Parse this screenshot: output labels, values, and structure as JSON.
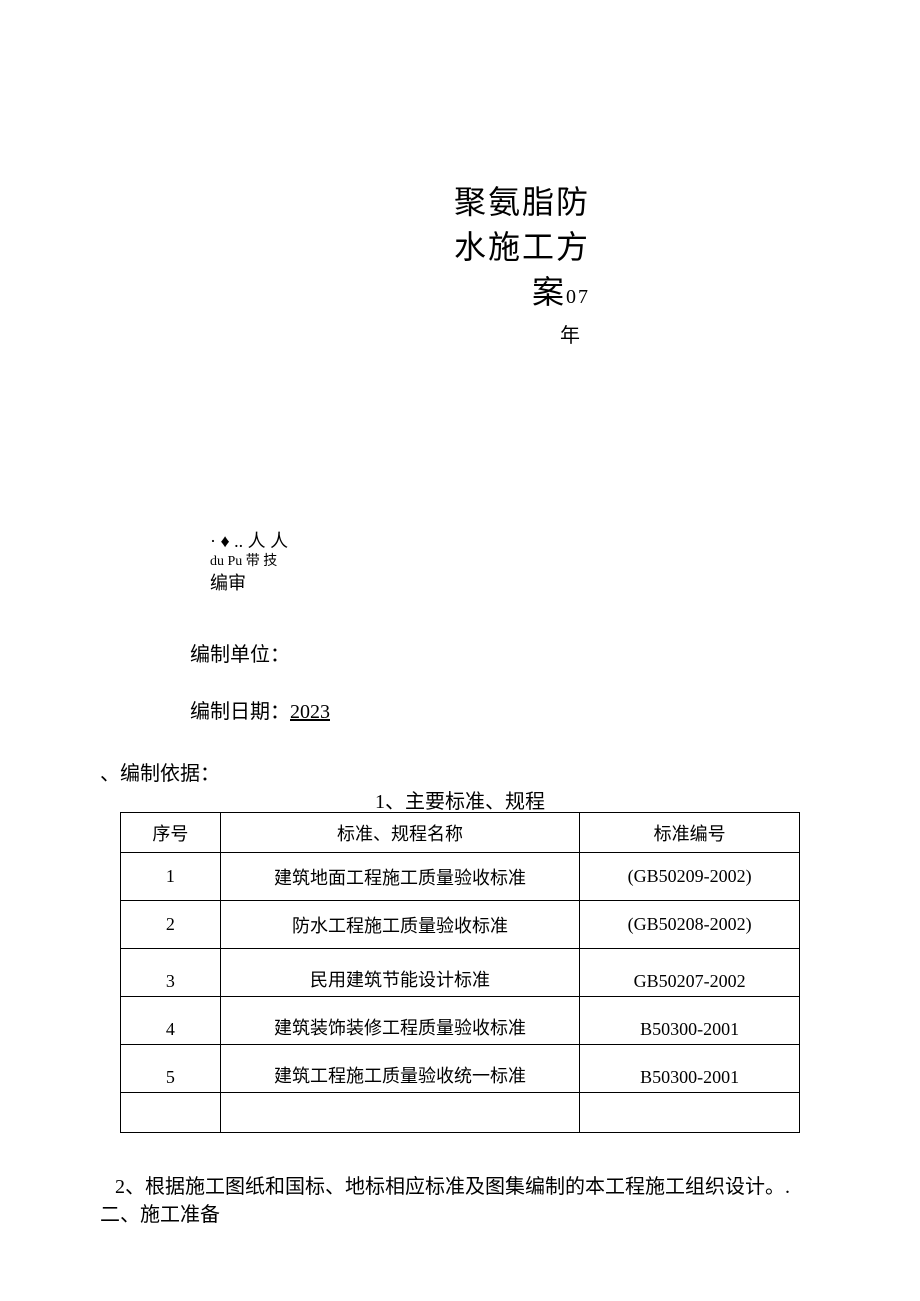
{
  "title": {
    "line1": "聚氨脂防",
    "line2": "水施工方",
    "line3": "案",
    "suffix": "07",
    "year": "年"
  },
  "meta": {
    "dots_people": "· ♦ .. 人 人",
    "dupu": "du Pu  带 技",
    "editreview": "编审"
  },
  "unit": {
    "label": "编制单位："
  },
  "date": {
    "label": "编制日期：",
    "value": "2023"
  },
  "section1": {
    "heading": "、编制依据：",
    "table_title": "1、主要标准、规程"
  },
  "table": {
    "columns": [
      "序号",
      "标准、规程名称",
      "标准编号"
    ],
    "rows": [
      [
        "1",
        "建筑地面工程施工质量验收标准",
        "(GB50209-2002)"
      ],
      [
        "2",
        "防水工程施工质量验收标准",
        "(GB50208-2002)"
      ],
      [
        "3",
        "民用建筑节能设计标准",
        "GB50207-2002"
      ],
      [
        "4",
        "建筑装饰装修工程质量验收标准",
        "B50300-2001"
      ],
      [
        "5",
        "建筑工程施工质量验收统一标准",
        "B50300-2001"
      ]
    ]
  },
  "para2": "2、根据施工图纸和国标、地标相应标准及图集编制的本工程施工组织设计。.",
  "section2": {
    "heading": "二、施工准备"
  }
}
